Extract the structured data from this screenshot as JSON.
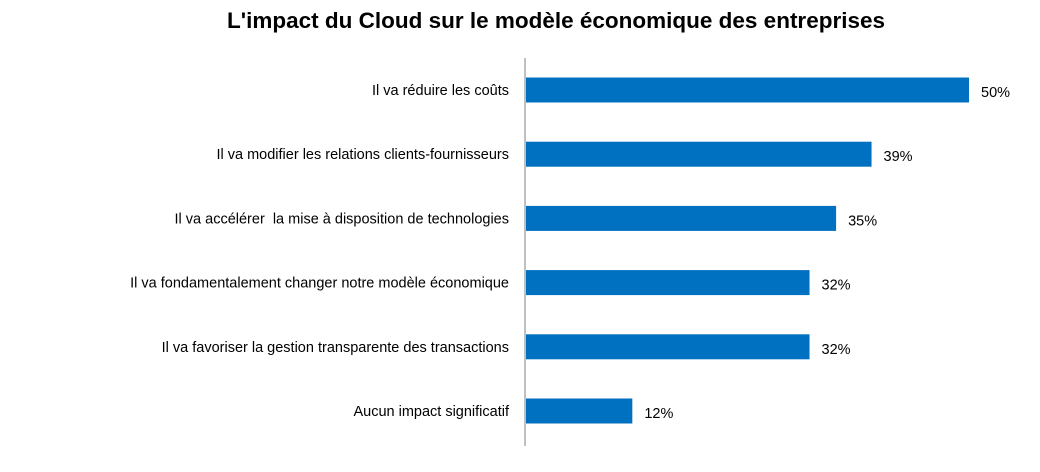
{
  "chart_data": {
    "type": "bar",
    "orientation": "horizontal",
    "title": "L'impact du Cloud sur le modèle économique des entreprises",
    "categories": [
      "Il va réduire les coûts",
      "Il va modifier les relations clients-fournisseurs",
      "Il va accélérer  la mise à disposition de technologies",
      "Il va fondamentalement changer notre modèle économique",
      "Il va favoriser la gestion transparente des transactions",
      "Aucun impact significatif"
    ],
    "values": [
      50,
      39,
      35,
      32,
      32,
      12
    ],
    "value_labels": [
      "50%",
      "39%",
      "35%",
      "32%",
      "32%",
      "12%"
    ],
    "xlim": [
      0,
      50
    ],
    "grid": false,
    "legend": "none",
    "bar_color": "#0070C0",
    "axis_color": "#808080"
  }
}
